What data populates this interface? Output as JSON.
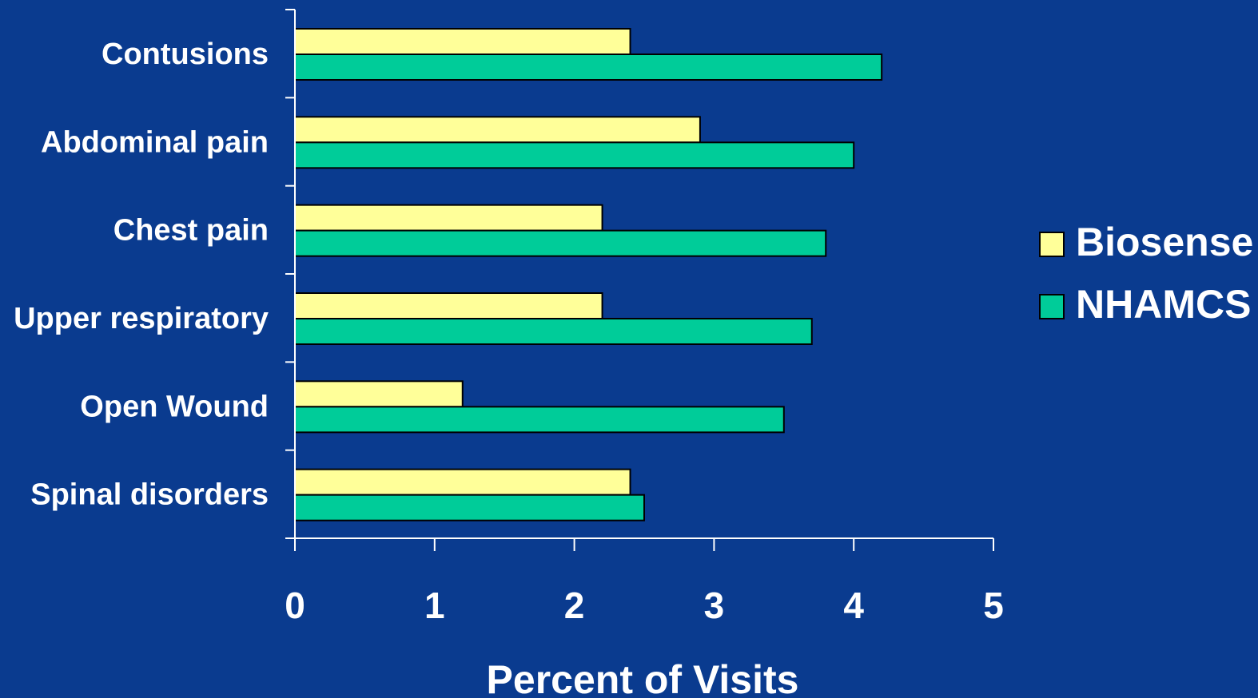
{
  "chart_data": {
    "type": "bar",
    "orientation": "horizontal",
    "categories": [
      "Contusions",
      "Abdominal pain",
      "Chest pain",
      "Upper respiratory",
      "Open Wound",
      "Spinal disorders"
    ],
    "series": [
      {
        "name": "Biosense",
        "color": "#ffff99",
        "values": [
          2.4,
          2.9,
          2.2,
          2.2,
          1.2,
          2.4
        ]
      },
      {
        "name": "NHAMCS",
        "color": "#00cc99",
        "values": [
          4.2,
          4.0,
          3.8,
          3.7,
          3.5,
          2.5
        ]
      }
    ],
    "xlabel": "Percent of Visits",
    "ylabel": "",
    "xlim": [
      0,
      5
    ],
    "xticks": [
      0,
      1,
      2,
      3,
      4,
      5
    ],
    "grid": false,
    "legend_position": "right",
    "background_color": "#0a3b8f"
  }
}
